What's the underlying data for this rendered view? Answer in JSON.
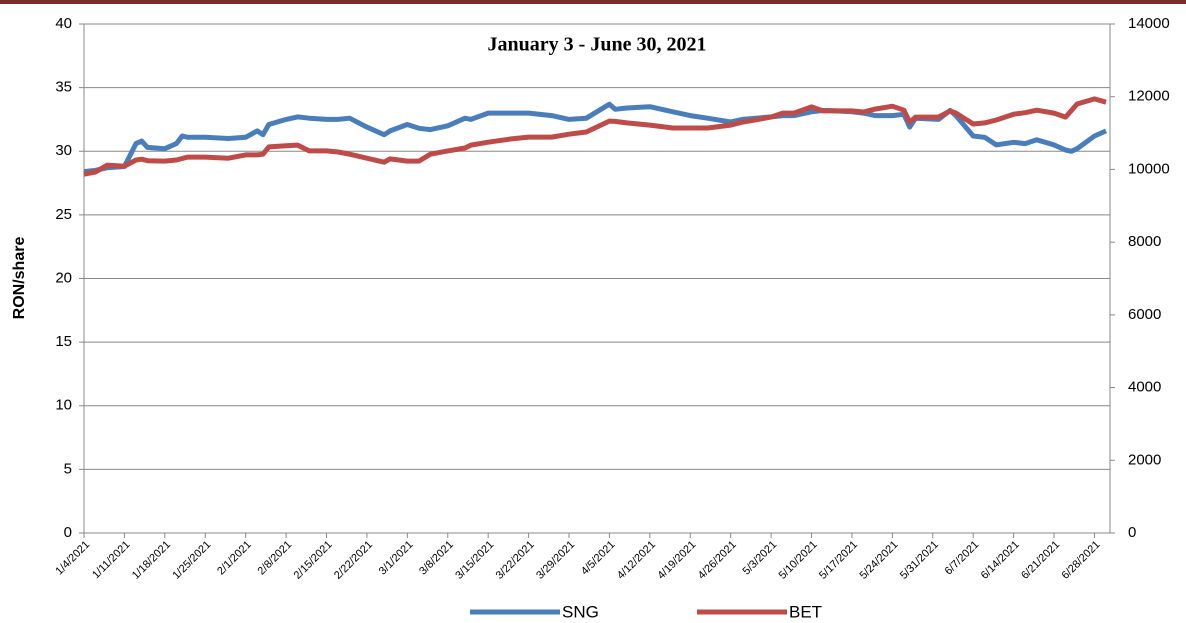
{
  "chart_data": {
    "type": "line",
    "title": "January 3 - June 30, 2021",
    "y_label": "RON/share",
    "x": [
      "1/4/2021",
      "1/6/2021",
      "1/8/2021",
      "1/11/2021",
      "1/13/2021",
      "1/14/2021",
      "1/15/2021",
      "1/18/2021",
      "1/20/2021",
      "1/21/2021",
      "1/22/2021",
      "1/25/2021",
      "1/29/2021",
      "2/1/2021",
      "2/3/2021",
      "2/4/2021",
      "2/5/2021",
      "2/8/2021",
      "2/10/2021",
      "2/12/2021",
      "2/15/2021",
      "2/17/2021",
      "2/19/2021",
      "2/22/2021",
      "2/25/2021",
      "2/26/2021",
      "3/1/2021",
      "3/3/2021",
      "3/5/2021",
      "3/8/2021",
      "3/11/2021",
      "3/12/2021",
      "3/15/2021",
      "3/19/2021",
      "3/22/2021",
      "3/26/2021",
      "3/29/2021",
      "4/1/2021",
      "4/5/2021",
      "4/6/2021",
      "4/8/2021",
      "4/12/2021",
      "4/16/2021",
      "4/19/2021",
      "4/22/2021",
      "4/26/2021",
      "4/28/2021",
      "5/3/2021",
      "5/5/2021",
      "5/7/2021",
      "5/10/2021",
      "5/12/2021",
      "5/13/2021",
      "5/17/2021",
      "5/19/2021",
      "5/21/2021",
      "5/24/2021",
      "5/26/2021",
      "5/27/2021",
      "5/28/2021",
      "6/1/2021",
      "6/3/2021",
      "6/4/2021",
      "6/7/2021",
      "6/9/2021",
      "6/11/2021",
      "6/14/2021",
      "6/16/2021",
      "6/18/2021",
      "6/21/2021",
      "6/23/2021",
      "6/24/2021",
      "6/25/2021",
      "6/28/2021",
      "6/30/2021"
    ],
    "series": [
      {
        "name": "SNG",
        "color": "#4a7ebb",
        "values": [
          28.4,
          28.5,
          28.7,
          28.8,
          30.6,
          30.8,
          30.3,
          30.2,
          30.6,
          31.2,
          31.1,
          31.1,
          31.0,
          31.1,
          31.6,
          31.3,
          32.1,
          32.5,
          32.7,
          32.6,
          32.5,
          32.5,
          32.6,
          31.9,
          31.3,
          31.6,
          32.1,
          31.8,
          31.7,
          32.0,
          32.6,
          32.5,
          33.0,
          33.0,
          33.0,
          32.8,
          32.5,
          32.6,
          33.7,
          33.3,
          33.4,
          33.5,
          33.1,
          32.8,
          32.6,
          32.3,
          32.5,
          32.7,
          32.8,
          32.8,
          33.1,
          33.2,
          33.2,
          33.1,
          33.0,
          32.8,
          32.8,
          32.9,
          31.9,
          32.6,
          32.5,
          33.2,
          32.8,
          31.2,
          31.1,
          30.5,
          30.7,
          30.6,
          30.9,
          30.5,
          30.1,
          30.0,
          30.2,
          31.2,
          31.6
        ]
      },
      {
        "name": "BET",
        "color": "#be4b48",
        "axis": "y2",
        "values": [
          9870,
          9930,
          10120,
          10090,
          10260,
          10280,
          10240,
          10230,
          10260,
          10300,
          10340,
          10340,
          10310,
          10400,
          10400,
          10420,
          10620,
          10650,
          10670,
          10510,
          10510,
          10480,
          10420,
          10310,
          10200,
          10290,
          10230,
          10230,
          10420,
          10510,
          10590,
          10670,
          10750,
          10840,
          10890,
          10890,
          10970,
          11030,
          11330,
          11320,
          11280,
          11220,
          11140,
          11140,
          11140,
          11220,
          11300,
          11440,
          11550,
          11550,
          11720,
          11610,
          11610,
          11610,
          11580,
          11660,
          11740,
          11630,
          11300,
          11440,
          11440,
          11610,
          11550,
          11250,
          11280,
          11360,
          11520,
          11560,
          11630,
          11550,
          11440,
          11620,
          11800,
          11940,
          11850
        ]
      }
    ],
    "xlim": [
      "1/4/2021",
      "6/30/2021"
    ],
    "xticks": [
      "1/4/2021",
      "1/11/2021",
      "1/18/2021",
      "1/25/2021",
      "2/1/2021",
      "2/8/2021",
      "2/15/2021",
      "2/22/2021",
      "3/1/2021",
      "3/8/2021",
      "3/15/2021",
      "3/22/2021",
      "3/29/2021",
      "4/5/2021",
      "4/12/2021",
      "4/19/2021",
      "4/26/2021",
      "5/3/2021",
      "5/10/2021",
      "5/17/2021",
      "5/24/2021",
      "5/31/2021",
      "6/7/2021",
      "6/14/2021",
      "6/21/2021",
      "6/28/2021"
    ],
    "ylim": [
      0,
      40
    ],
    "yticks": [
      0,
      5,
      10,
      15,
      20,
      25,
      30,
      35,
      40
    ],
    "y2lim": [
      0,
      14000
    ],
    "y2ticks": [
      0,
      2000,
      4000,
      6000,
      8000,
      10000,
      12000,
      14000
    ],
    "grid": true,
    "legend": "bottom"
  }
}
